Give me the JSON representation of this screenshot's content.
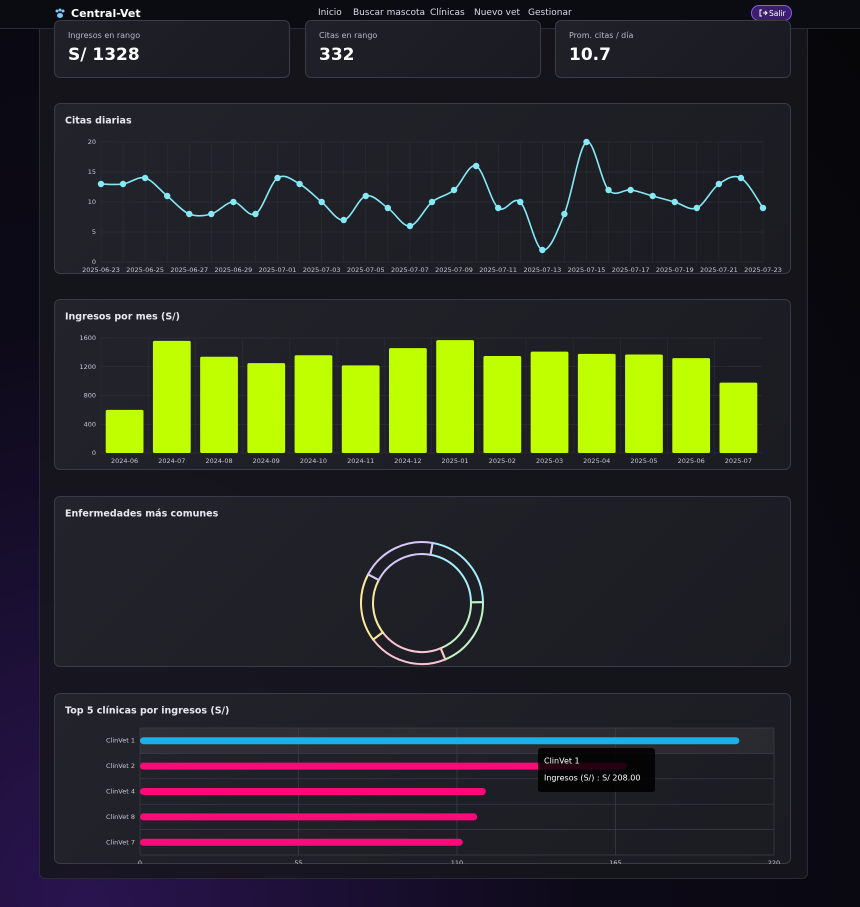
{
  "nav": {
    "brand": "Central-Vet",
    "links": [
      "Inicio",
      "Buscar mascota",
      "Clínicas",
      "Nuevo vet",
      "Gestionar"
    ],
    "logout": "Salir"
  },
  "stats": [
    {
      "label": "Ingresos en rango",
      "value": "S/ 1328"
    },
    {
      "label": "Citas en rango",
      "value": "332"
    },
    {
      "label": "Prom. citas / día",
      "value": "10.7"
    }
  ],
  "chart_data": [
    {
      "type": "line",
      "title": "Citas diarias",
      "categories": [
        "2025-06-23",
        null,
        "2025-06-25",
        null,
        "2025-06-27",
        null,
        "2025-06-29",
        null,
        "2025-07-01",
        null,
        "2025-07-03",
        null,
        "2025-07-05",
        null,
        "2025-07-07",
        null,
        "2025-07-09",
        null,
        "2025-07-11",
        null,
        "2025-07-13",
        null,
        "2025-07-15",
        null,
        "2025-07-17",
        null,
        "2025-07-19",
        null,
        "2025-07-21",
        null,
        "2025-07-23"
      ],
      "values": [
        13,
        13,
        14,
        11,
        8,
        8,
        10,
        8,
        14,
        13,
        10,
        7,
        11,
        9,
        6,
        10,
        12,
        16,
        9,
        10,
        2,
        8,
        20,
        12,
        12,
        11,
        10,
        9,
        13,
        14,
        9
      ],
      "color": "#86e9f6",
      "ylim": [
        0,
        20
      ],
      "yticks": [
        0,
        5,
        10,
        15,
        20
      ],
      "grid": true
    },
    {
      "type": "bar",
      "title": "Ingresos por mes (S/)",
      "categories": [
        "2024-06",
        "2024-07",
        "2024-08",
        "2024-09",
        "2024-10",
        "2024-11",
        "2024-12",
        "2025-01",
        "2025-02",
        "2025-03",
        "2025-04",
        "2025-05",
        "2025-06",
        "2025-07"
      ],
      "values": [
        600,
        1560,
        1340,
        1250,
        1360,
        1220,
        1460,
        1570,
        1350,
        1410,
        1380,
        1370,
        1320,
        980
      ],
      "color": "#bfff00",
      "ylim": [
        0,
        1600
      ],
      "yticks": [
        0,
        400,
        800,
        1200,
        1600
      ],
      "grid": true
    },
    {
      "type": "doughnut",
      "title": "Enfermedades más comunes",
      "values": [
        22,
        19,
        21,
        18,
        20
      ],
      "colors": [
        "#a5f0fb",
        "#c2f5c4",
        "#fdc6cf",
        "#fbe99a",
        "#d9c8fb"
      ]
    },
    {
      "type": "hbar",
      "title": "Top 5 clínicas por ingresos (S/)",
      "categories": [
        "ClinVet 1",
        "ClinVet 2",
        "ClinVet 4",
        "ClinVet 8",
        "ClinVet 7"
      ],
      "values": [
        208,
        169,
        120,
        117,
        112
      ],
      "colors": [
        "#1ab0e8",
        "#ff0a78",
        "#ff0a78",
        "#ff0a78",
        "#ff0a78"
      ],
      "xlim": [
        0,
        220
      ],
      "xticks": [
        0,
        55,
        110,
        165,
        220
      ],
      "grid": true,
      "tooltip": {
        "title": "ClinVet 1",
        "label": "Ingresos (S/) : S/ 208.00"
      }
    }
  ]
}
